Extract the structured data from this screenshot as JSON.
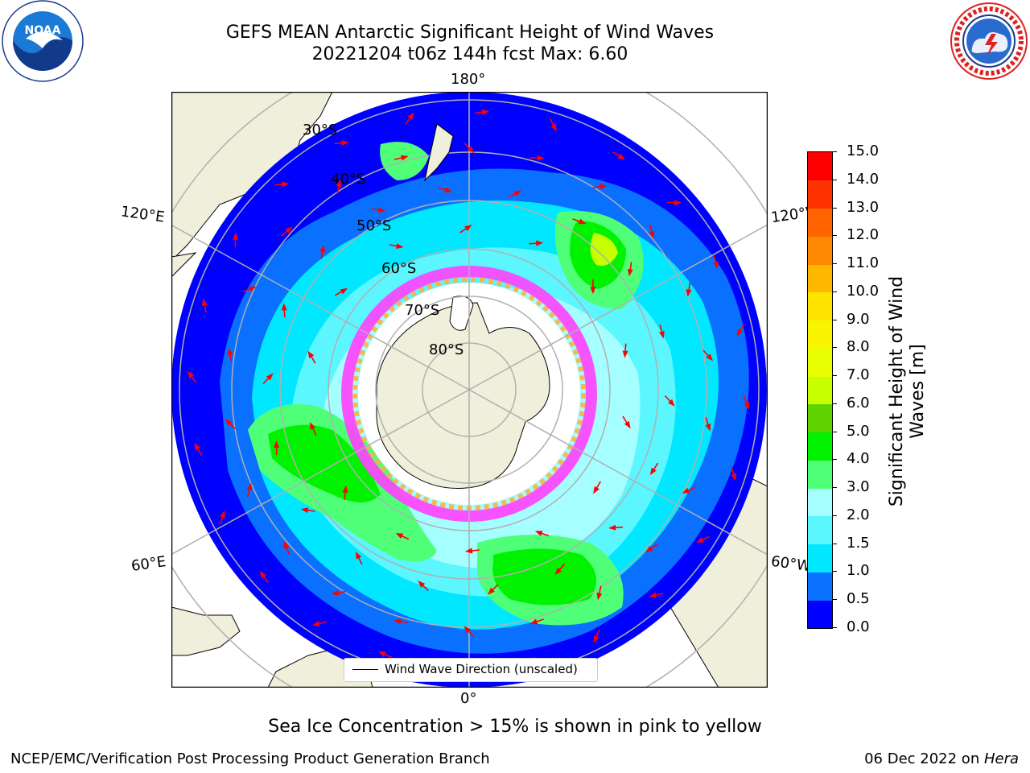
{
  "title": {
    "line1": "GEFS MEAN Antarctic Significant Height of Wind Waves",
    "line2": "20221204 t06z 144h fcst   Max: 6.60"
  },
  "logos": {
    "left": "noaa-logo",
    "right": "nws-logo"
  },
  "map": {
    "lon_labels": {
      "top": "180°",
      "left_upper": "120°E",
      "right_upper": "120°W",
      "left_lower": "60°E",
      "right_lower": "60°W",
      "bottom": "0°"
    },
    "lat_labels": [
      "30°S",
      "40°S",
      "50°S",
      "60°S",
      "70°S",
      "80°S"
    ],
    "legend_label": "Wind Wave Direction (unscaled)",
    "colors": {
      "land": "#efefdb",
      "graticule": "#b0b0b0",
      "arrow": "#ff0000"
    }
  },
  "colorbar": {
    "title": "Significant Height of Wind Waves [m]",
    "ticks": [
      "0.0",
      "0.5",
      "1.0",
      "1.5",
      "2.0",
      "3.0",
      "4.0",
      "5.0",
      "6.0",
      "7.0",
      "8.0",
      "9.0",
      "10.0",
      "11.0",
      "12.0",
      "13.0",
      "14.0",
      "15.0"
    ],
    "colors": [
      "#0000ff",
      "#0a70ff",
      "#00e7ff",
      "#5cf6ff",
      "#a5feff",
      "#50ff78",
      "#00f200",
      "#5ed300",
      "#c7ff00",
      "#e7ff00",
      "#f9f500",
      "#ffe300",
      "#ffb800",
      "#ff8900",
      "#ff6400",
      "#ff3300",
      "#ff0000"
    ]
  },
  "footer": {
    "note": "Sea Ice Concentration > 15% is shown in pink to yellow",
    "branch": "NCEP/EMC/Verification Post Processing Product Generation Branch",
    "date": "06 Dec 2022 on ",
    "host": "Hera"
  }
}
